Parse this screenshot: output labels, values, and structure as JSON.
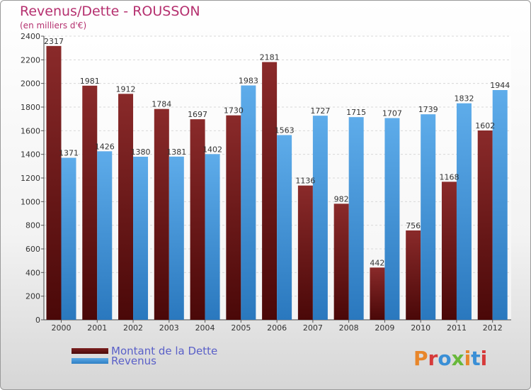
{
  "header": {
    "title": "Revenus/Dette - ROUSSON",
    "subtitle": "(en milliers d'€)"
  },
  "logo": {
    "text": "Proxiti"
  },
  "colors": {
    "dette": "#7b1f1f",
    "dette_dark": "#5a0c0c",
    "revenus": "#4f9fdf",
    "revenus_dark": "#2f7fc4",
    "axis_text": "#333333"
  },
  "chart_data": {
    "type": "bar",
    "title": "Revenus/Dette - ROUSSON",
    "subtitle": "(en milliers d'€)",
    "categories": [
      "2000",
      "2001",
      "2002",
      "2003",
      "2004",
      "2005",
      "2006",
      "2007",
      "2008",
      "2009",
      "2010",
      "2011",
      "2012"
    ],
    "series": [
      {
        "name": "Montant de la Dette",
        "values": [
          2317,
          1981,
          1912,
          1784,
          1697,
          1730,
          2181,
          1136,
          982,
          442,
          756,
          1168,
          1602
        ]
      },
      {
        "name": "Revenus",
        "values": [
          1371,
          1426,
          1380,
          1381,
          1402,
          1983,
          1563,
          1727,
          1715,
          1707,
          1739,
          1832,
          1944
        ]
      }
    ],
    "ylim": [
      0,
      2400
    ],
    "yticks": [
      "0",
      "200",
      "400",
      "600",
      "800",
      "1000",
      "1200",
      "1400",
      "1600",
      "1800",
      "2000",
      "2200",
      "2400"
    ],
    "grid": true,
    "legend_position": "bottom-left"
  }
}
